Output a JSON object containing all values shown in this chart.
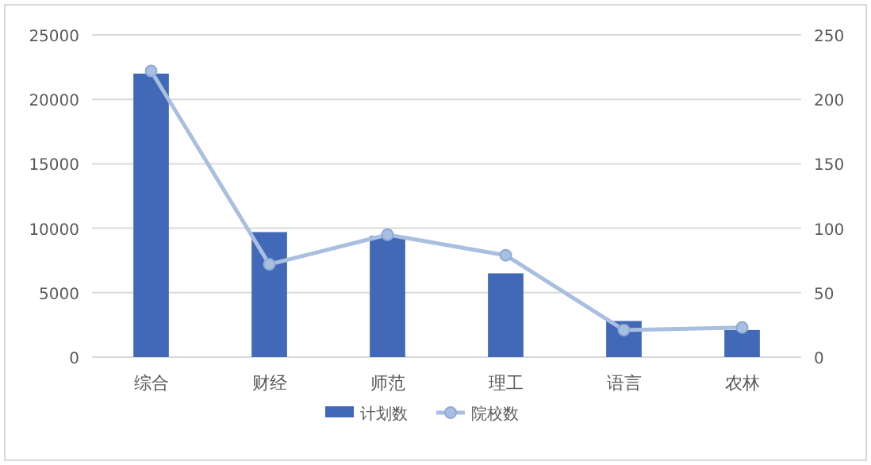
{
  "chart_data": {
    "type": "bar",
    "categories": [
      "综合",
      "财经",
      "师范",
      "理工",
      "语言",
      "农林"
    ],
    "series": [
      {
        "name": "计划数",
        "color": "#4169b8",
        "values": [
          22000,
          9700,
          9400,
          6500,
          2800,
          2100
        ]
      },
      {
        "name": "院校数",
        "type": "line",
        "axis": "y2",
        "color": "#a9bfe0",
        "marker": "circle",
        "values": [
          222,
          72,
          95,
          79,
          21,
          23
        ]
      }
    ],
    "ylim": [
      0,
      25000
    ],
    "yticks": [
      0,
      5000,
      10000,
      15000,
      20000,
      25000
    ],
    "y2lim": [
      0,
      250
    ],
    "y2ticks": [
      0,
      50,
      100,
      150,
      200,
      250
    ],
    "grid": "y",
    "legend": "bottom"
  }
}
